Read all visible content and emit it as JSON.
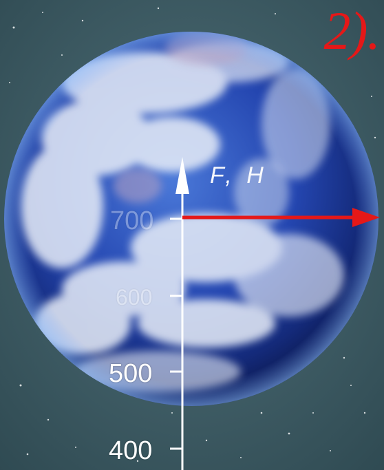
{
  "figure": {
    "corner_label": "2).",
    "force_label": "F, H",
    "scale_ticks": [
      "700",
      "600",
      "500",
      "400"
    ],
    "colors": {
      "space": "#3a5a62",
      "ocean": "#2a4fb8",
      "clouds": "#e8eef8",
      "arrow": "#e51818",
      "axis": "#ffffff"
    }
  }
}
